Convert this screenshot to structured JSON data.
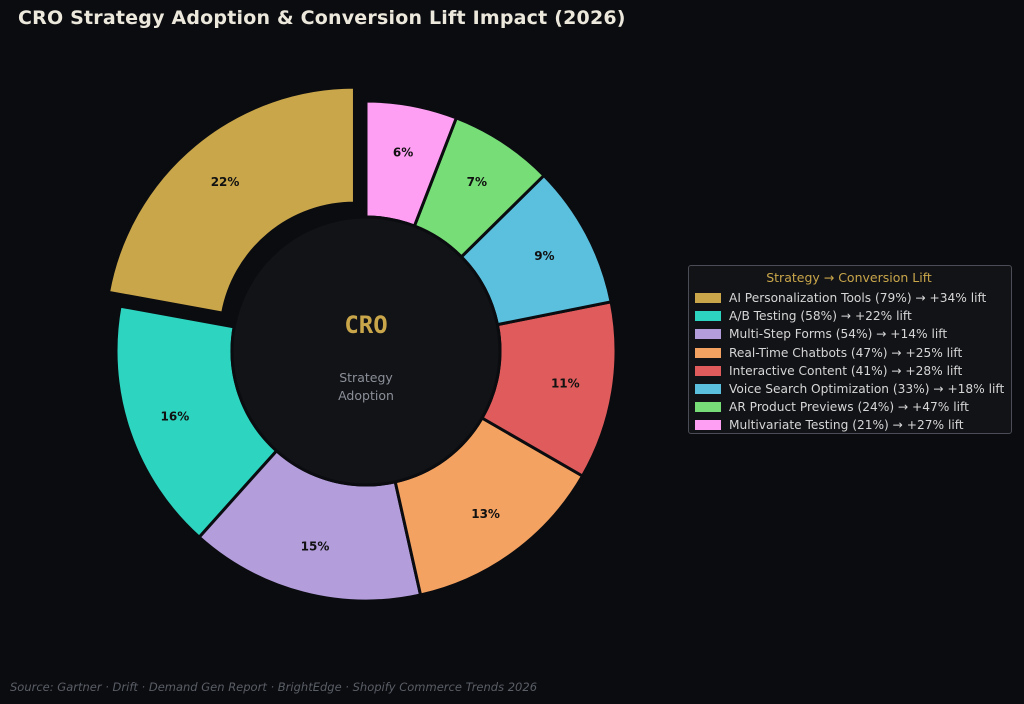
{
  "title": "CRO Strategy Adoption & Conversion Lift Impact (2026)",
  "center": {
    "label": "CRO",
    "sub_line1": "Strategy",
    "sub_line2": "Adoption"
  },
  "legend": {
    "title": "Strategy → Conversion Lift",
    "entries": [
      "AI Personalization Tools (79%) → +34% lift",
      "A/B Testing (58%) → +22% lift",
      "Multi-Step Forms (54%) → +14% lift",
      "Real-Time Chatbots (47%) → +25% lift",
      "Interactive Content (41%) → +28% lift",
      "Voice Search Optimization (33%) → +18% lift",
      "AR Product Previews (24%) → +47% lift",
      "Multivariate Testing (21%) → +27% lift"
    ],
    "placement": "center-right"
  },
  "source": "Source: Gartner · Drift · Demand Gen Report · BrightEdge · Shopify Commerce Trends 2026",
  "chart_data": {
    "type": "pie",
    "donut": true,
    "start_angle_deg": 90,
    "direction": "counterclockwise",
    "exploded": [
      "AI Personalization Tools"
    ],
    "slices": [
      {
        "name": "AI Personalization Tools",
        "adoption": 79,
        "lift": 34,
        "label": "22%",
        "color": "#c9a64a"
      },
      {
        "name": "A/B Testing",
        "adoption": 58,
        "lift": 22,
        "label": "16%",
        "color": "#2dd4bf"
      },
      {
        "name": "Multi-Step Forms",
        "adoption": 54,
        "lift": 14,
        "label": "15%",
        "color": "#b39ddb"
      },
      {
        "name": "Real-Time Chatbots",
        "adoption": 47,
        "lift": 25,
        "label": "13%",
        "color": "#f4a261"
      },
      {
        "name": "Interactive Content",
        "adoption": 41,
        "lift": 28,
        "label": "11%",
        "color": "#e05c5c"
      },
      {
        "name": "Voice Search Optimization",
        "adoption": 33,
        "lift": 18,
        "label": "9%",
        "color": "#5bc0de"
      },
      {
        "name": "AR Product Previews",
        "adoption": 24,
        "lift": 47,
        "label": "7%",
        "color": "#77dd77"
      },
      {
        "name": "Multivariate Testing",
        "adoption": 21,
        "lift": 27,
        "label": "6%",
        "color": "#ff9ff3"
      }
    ]
  }
}
